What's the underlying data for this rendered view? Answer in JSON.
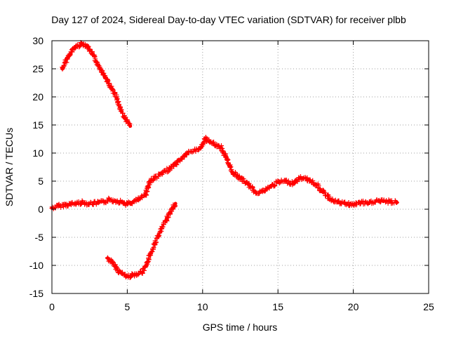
{
  "chart_data": {
    "type": "scatter",
    "title": "Day 127 of 2024, Sidereal Day-to-day VTEC variation (SDTVAR) for receiver plbb",
    "xlabel": "GPS time / hours",
    "ylabel": "SDTVAR / TECUs",
    "xlim": [
      0,
      25
    ],
    "ylim": [
      -15,
      30
    ],
    "xticks": [
      0,
      5,
      10,
      15,
      20,
      25
    ],
    "yticks": [
      -15,
      -10,
      -5,
      0,
      5,
      10,
      15,
      20,
      25,
      30
    ],
    "grid": true,
    "marker": "+",
    "color": "#ff0000",
    "series": [
      {
        "name": "main",
        "x": [
          0.0,
          0.5,
          1.0,
          1.5,
          2.0,
          2.5,
          3.0,
          3.5,
          3.8,
          4.2,
          4.6,
          5.0,
          5.4,
          5.8,
          6.2,
          6.5,
          6.8,
          7.3,
          7.8,
          8.2,
          8.6,
          9.0,
          9.5,
          9.9,
          10.2,
          10.5,
          10.8,
          11.2,
          11.6,
          12.0,
          12.5,
          13.0,
          13.5,
          14.0,
          14.5,
          15.0,
          15.5,
          16.0,
          16.5,
          17.0,
          17.5,
          18.0,
          18.5,
          19.0,
          19.5,
          20.0,
          20.5,
          21.0,
          21.5,
          22.0,
          22.5,
          22.9
        ],
        "y": [
          0.2,
          0.6,
          0.8,
          1.0,
          1.2,
          1.0,
          1.1,
          1.3,
          1.7,
          1.5,
          1.3,
          0.9,
          1.3,
          1.8,
          2.5,
          5.0,
          5.6,
          6.3,
          7.2,
          8.0,
          9.0,
          10.0,
          10.5,
          11.0,
          12.5,
          12.0,
          11.5,
          11.0,
          9.0,
          6.5,
          5.5,
          4.5,
          3.0,
          3.2,
          4.0,
          4.8,
          5.0,
          4.6,
          5.6,
          5.3,
          4.5,
          3.0,
          1.8,
          1.2,
          1.0,
          0.8,
          1.2,
          1.0,
          1.5,
          1.4,
          1.3,
          1.2
        ]
      },
      {
        "name": "upper-branch",
        "x": [
          0.7,
          1.0,
          1.5,
          2.0,
          2.3,
          2.7,
          3.1,
          3.5,
          3.9,
          4.3,
          4.6,
          4.9,
          5.2
        ],
        "y": [
          25.0,
          26.8,
          28.8,
          29.5,
          29.2,
          27.6,
          25.6,
          23.7,
          21.8,
          19.8,
          17.5,
          16.0,
          14.8
        ]
      },
      {
        "name": "lower-branch",
        "x": [
          3.7,
          4.0,
          4.5,
          5.0,
          5.5,
          6.0,
          6.3,
          6.5,
          6.8,
          7.2,
          7.6,
          8.0,
          8.2
        ],
        "y": [
          -8.7,
          -9.5,
          -11.2,
          -12.0,
          -11.6,
          -11.2,
          -10.0,
          -8.2,
          -6.2,
          -4.0,
          -1.8,
          0.2,
          1.0
        ]
      }
    ]
  }
}
